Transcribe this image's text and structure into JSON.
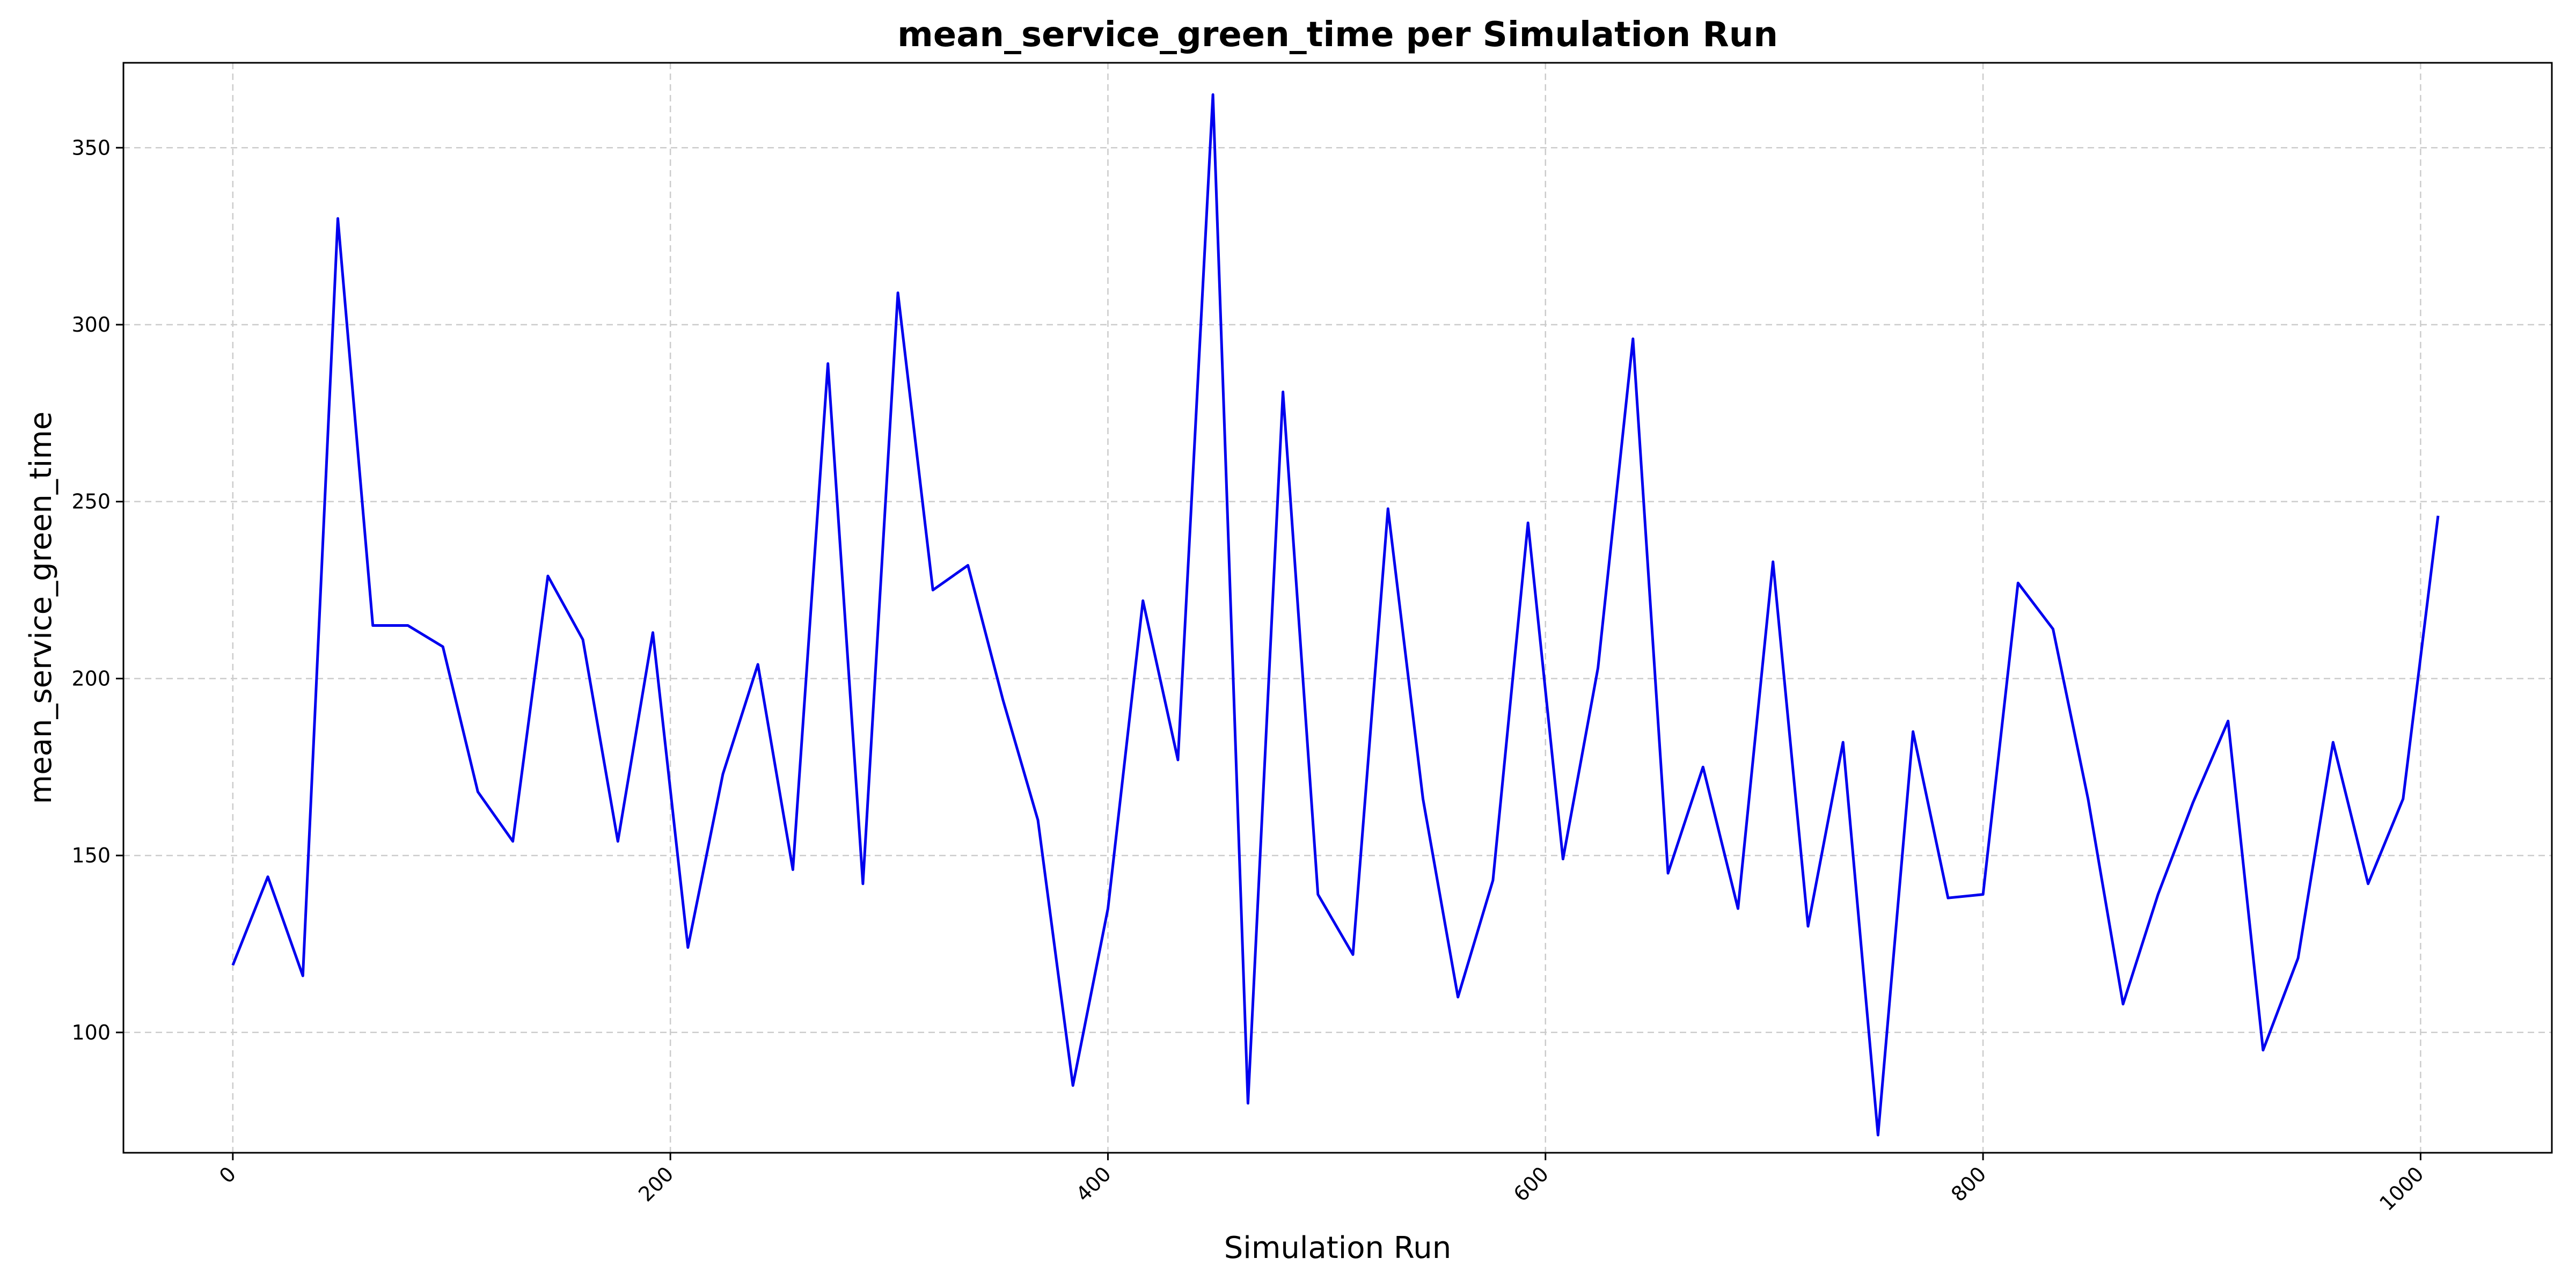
{
  "chart_data": {
    "type": "line",
    "title": "mean_service_green_time per Simulation Run",
    "xlabel": "Simulation Run",
    "ylabel": "mean_service_green_time",
    "xlim": [
      -50,
      1060
    ],
    "ylim": [
      66,
      374
    ],
    "xticks": [
      0,
      200,
      400,
      600,
      800,
      1000
    ],
    "yticks": [
      100,
      150,
      200,
      250,
      300,
      350
    ],
    "xtick_rotation": 45,
    "grid": true,
    "legend": "none",
    "colors": {
      "line": "#0000ee",
      "grid": "#cccccc",
      "axes": "#000000"
    },
    "series": [
      {
        "x": [
          0,
          16,
          32,
          48,
          64,
          80,
          96,
          112,
          128,
          144,
          160,
          176,
          192,
          208,
          224,
          240,
          256,
          272,
          288,
          304,
          320,
          336,
          352,
          368,
          384,
          400,
          416,
          432,
          448,
          464,
          480,
          496,
          512,
          528,
          544,
          560,
          576,
          592,
          608,
          624,
          640,
          656,
          672,
          688,
          704,
          720,
          736,
          752,
          768,
          784,
          800,
          816,
          832,
          848,
          864,
          880,
          896,
          912,
          928,
          944,
          960,
          976,
          992,
          1008
        ],
        "values": [
          119,
          144,
          116,
          330,
          215,
          215,
          209,
          168,
          154,
          229,
          211,
          154,
          213,
          124,
          173,
          204,
          146,
          289,
          142,
          309,
          225,
          232,
          194,
          160,
          85,
          135,
          222,
          177,
          365,
          80,
          281,
          139,
          122,
          248,
          166,
          110,
          143,
          244,
          149,
          203,
          296,
          145,
          175,
          135,
          233,
          130,
          182,
          71,
          185,
          138,
          139,
          227,
          214,
          166,
          108,
          139,
          165,
          188,
          95,
          121,
          182,
          142,
          166,
          246
        ]
      }
    ]
  }
}
